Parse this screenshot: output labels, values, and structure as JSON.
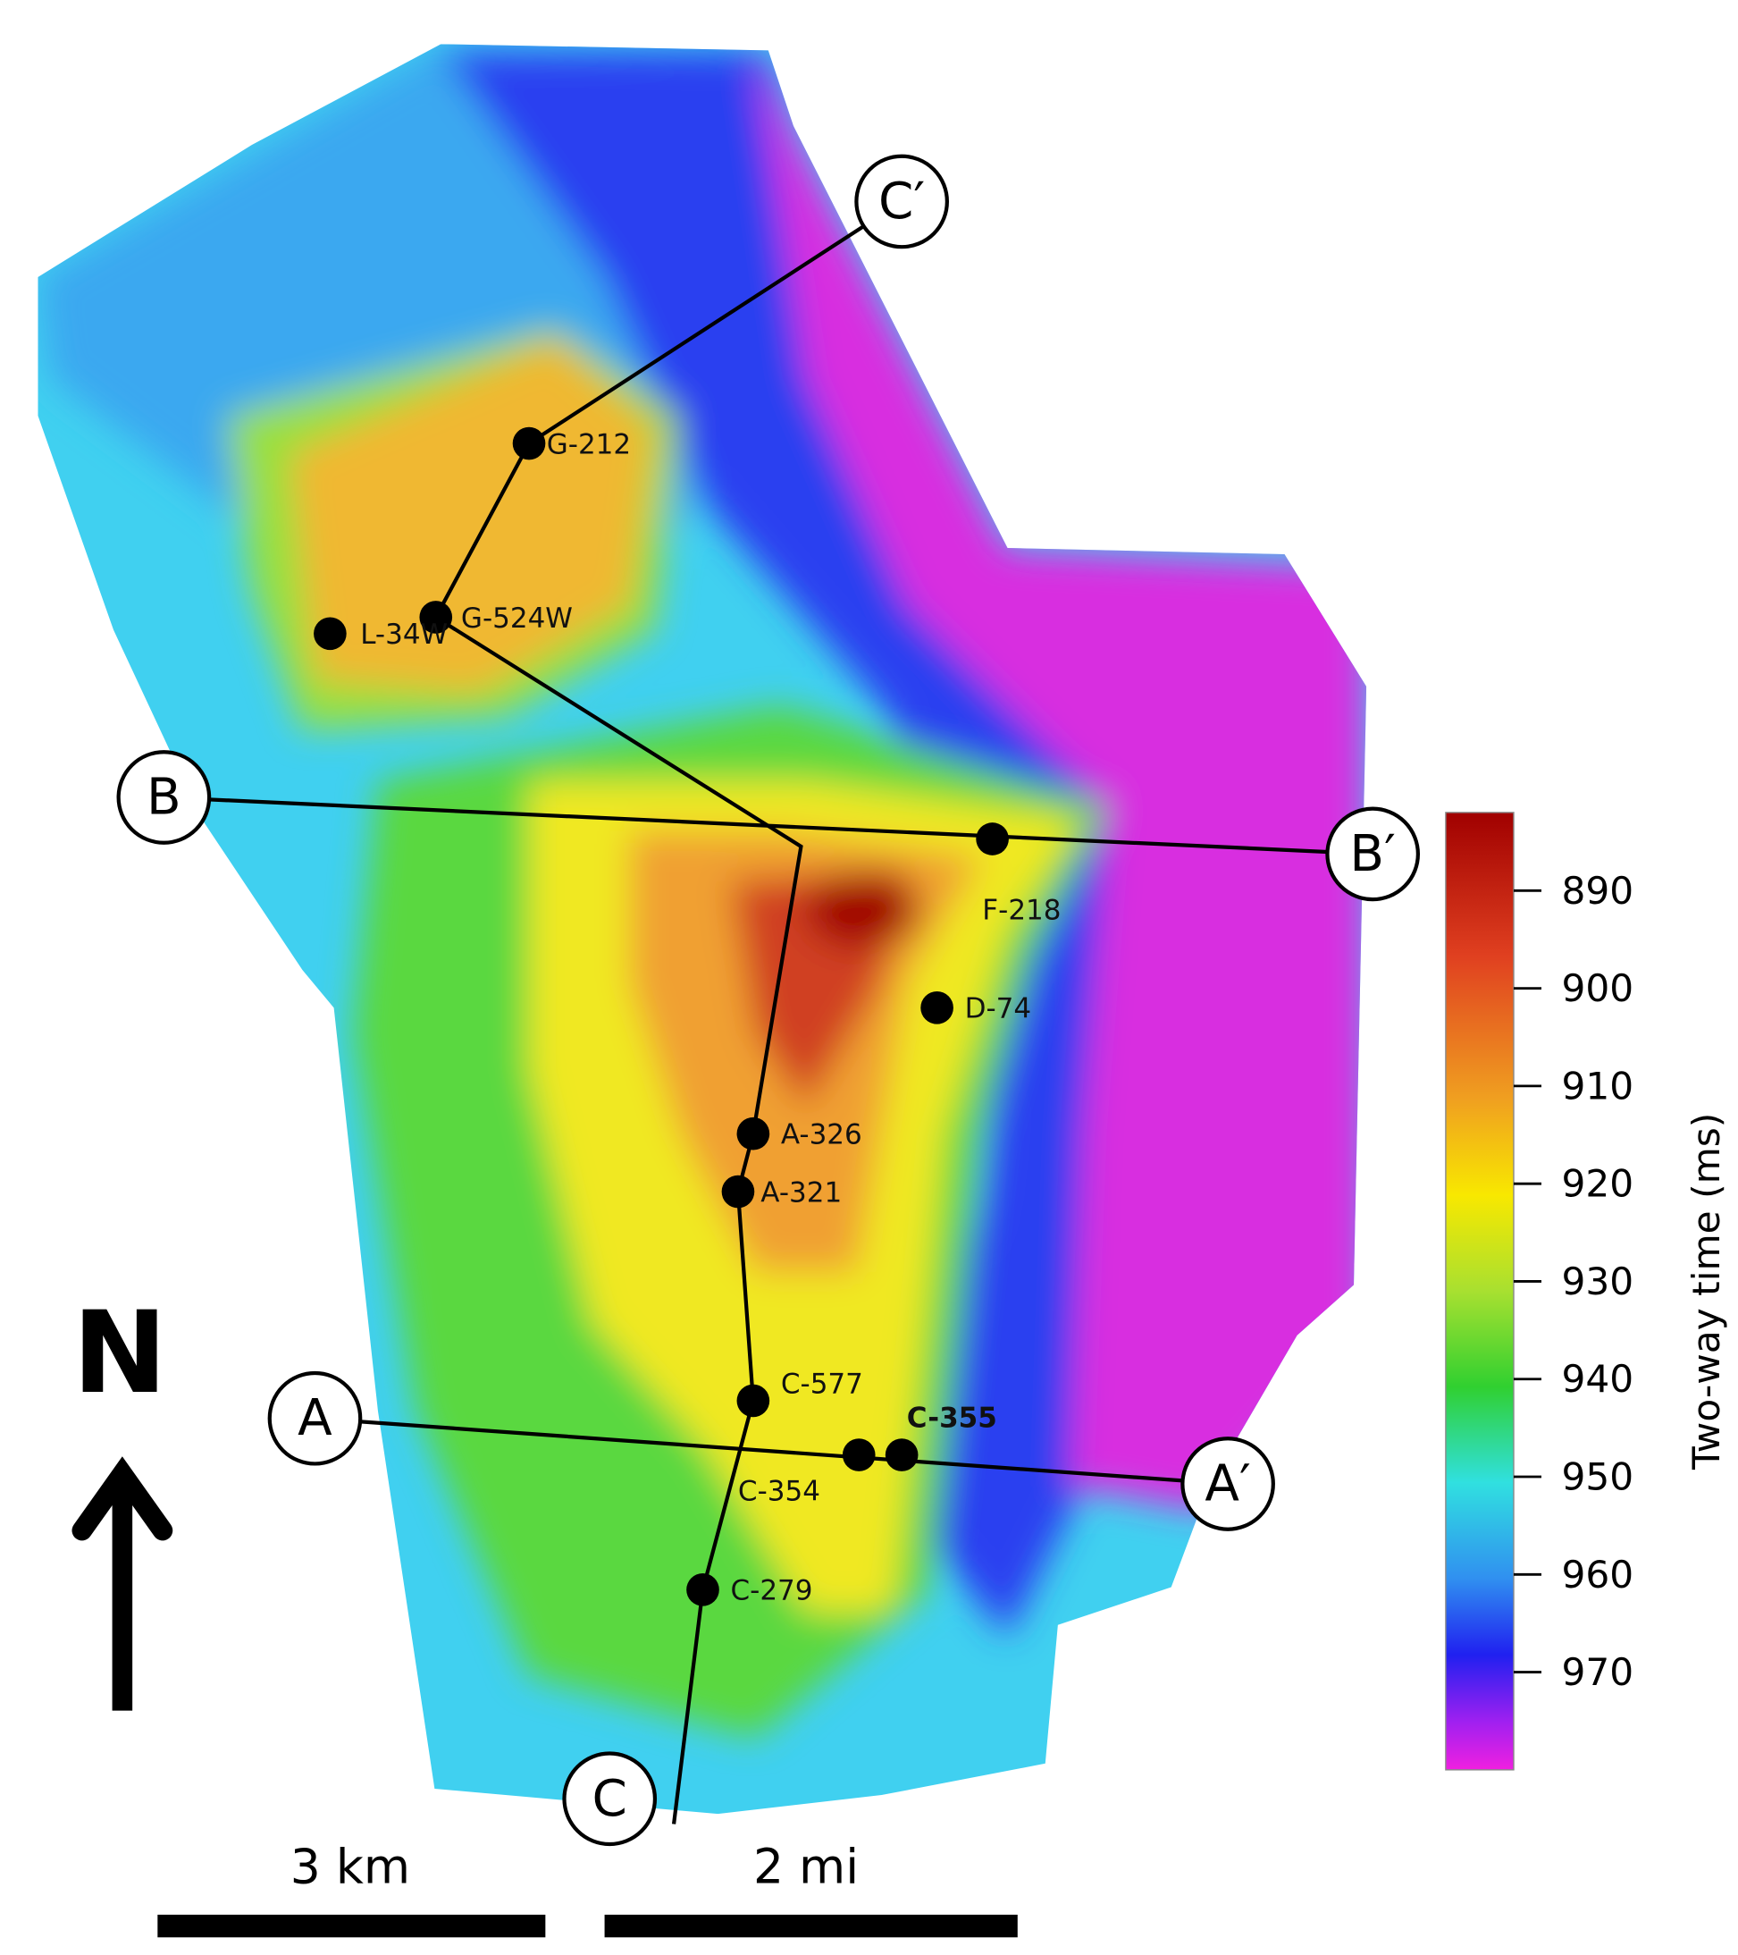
{
  "map": {
    "colorbar": {
      "label": "Two-way time (ms)",
      "range": [
        882,
        980
      ],
      "ticks": [
        890,
        900,
        910,
        920,
        930,
        940,
        950,
        960,
        970
      ]
    },
    "wells": [
      "G-212",
      "G-524W",
      "L-34W",
      "F-218",
      "D-74",
      "A-326",
      "A-321",
      "C-577",
      "C-354",
      "C-355",
      "C-279"
    ],
    "sections": [
      "A",
      "A′",
      "B",
      "B′",
      "C",
      "C′"
    ],
    "north": "N",
    "scale_bar": {
      "metric": "3 km",
      "imperial": "2 mi"
    }
  }
}
